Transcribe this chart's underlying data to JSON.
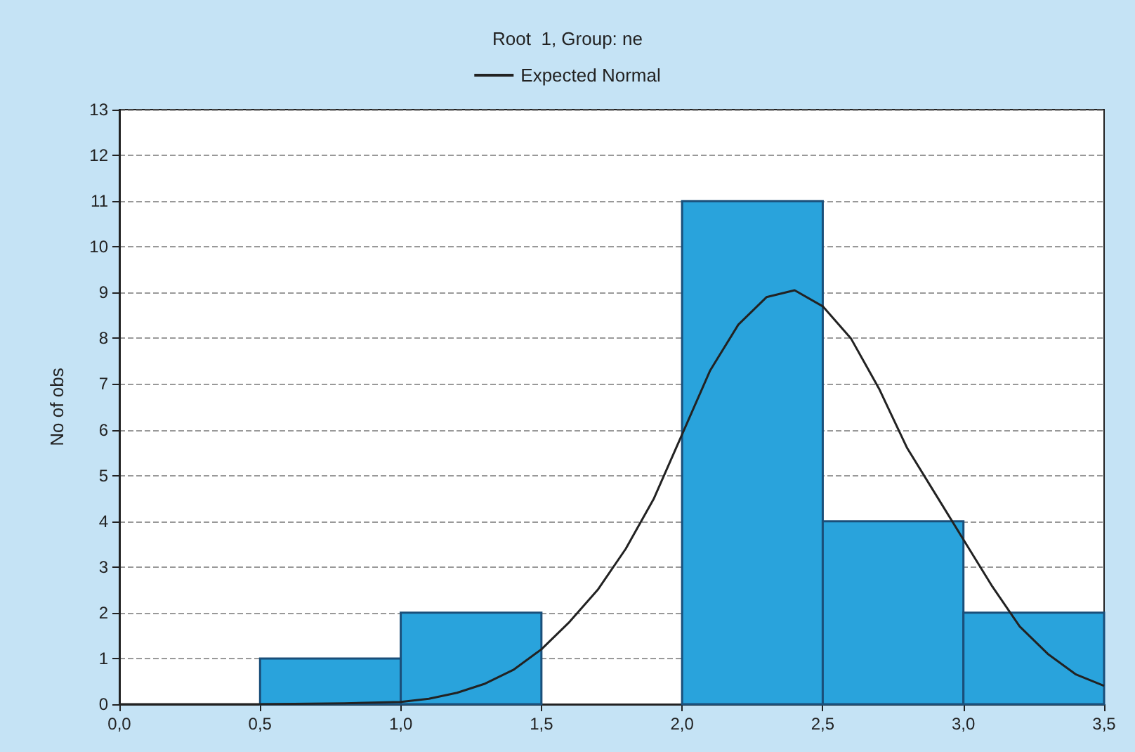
{
  "chart_data": {
    "type": "histogram",
    "title": "Root  1, Group: ne",
    "ylabel": "No of obs",
    "bins": [
      0,
      0.5,
      1,
      1.5,
      2,
      2.5,
      3,
      3.5
    ],
    "values": [
      0,
      1,
      2,
      0,
      11,
      4,
      2
    ],
    "color": "#29a3dc",
    "series": [
      {
        "type": "line",
        "name": "Expected Normal",
        "color": "#222222",
        "x": [
          0,
          0.5,
          0.8,
          1.0,
          1.1,
          1.2,
          1.3,
          1.4,
          1.5,
          1.6,
          1.7,
          1.8,
          1.9,
          2.0,
          2.1,
          2.2,
          2.3,
          2.4,
          2.5,
          2.6,
          2.7,
          2.8,
          2.9,
          3.0,
          3.1,
          3.2,
          3.3,
          3.4,
          3.5
        ],
        "values": [
          0,
          0,
          0.02,
          0.05,
          0.12,
          0.25,
          0.45,
          0.75,
          1.2,
          1.8,
          2.5,
          3.4,
          4.5,
          5.9,
          7.3,
          8.3,
          8.9,
          9.05,
          8.7,
          8.0,
          6.9,
          5.6,
          4.6,
          3.6,
          2.6,
          1.7,
          1.1,
          0.65,
          0.4
        ]
      }
    ],
    "xlim": [
      0,
      3.5
    ],
    "xticks": [
      {
        "value": 0,
        "label": "0,0"
      },
      {
        "value": 0.5,
        "label": "0,5"
      },
      {
        "value": 1,
        "label": "1,0"
      },
      {
        "value": 1.5,
        "label": "1,5"
      },
      {
        "value": 2,
        "label": "2,0"
      },
      {
        "value": 2.5,
        "label": "2,5"
      },
      {
        "value": 3,
        "label": "3,0"
      },
      {
        "value": 3.5,
        "label": "3,5"
      }
    ],
    "ylim": [
      0,
      13
    ],
    "yticks": [
      0,
      1,
      2,
      3,
      4,
      5,
      6,
      7,
      8,
      9,
      10,
      11,
      12,
      13
    ],
    "grid": "y",
    "legend": "top",
    "marker": "none"
  }
}
